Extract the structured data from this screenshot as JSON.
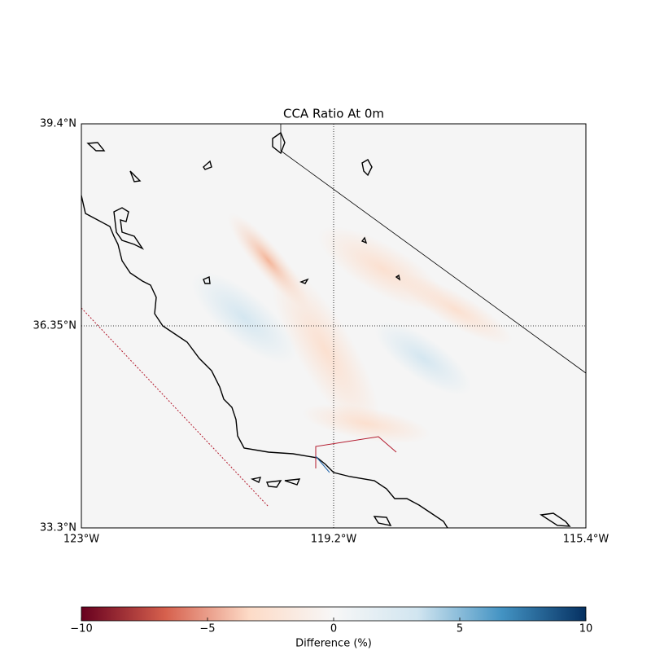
{
  "chart_data": {
    "type": "map",
    "title": "CCA Ratio At 0m",
    "xlim": [
      -123,
      -115.4
    ],
    "xticks": [
      {
        "value": -123,
        "label": "123°W"
      },
      {
        "value": -119.2,
        "label": "119.2°W"
      },
      {
        "value": -115.4,
        "label": "115.4°W"
      }
    ],
    "ylim": [
      33.3,
      39.4
    ],
    "yticks": [
      {
        "value": 33.3,
        "label": "33.3°N"
      },
      {
        "value": 36.35,
        "label": "36.35°N"
      },
      {
        "value": 39.4,
        "label": "39.4°N"
      }
    ],
    "grid": true,
    "colorbar": {
      "label": "Difference (%)",
      "lim": [
        -10,
        10
      ],
      "ticks": [
        {
          "value": -10,
          "label": "−10"
        },
        {
          "value": -5,
          "label": "−5"
        },
        0,
        5,
        10
      ],
      "colors": [
        "#67001f",
        "#d6604d",
        "#fddbc7",
        "#f7f7f7",
        "#d1e5f0",
        "#4393c3",
        "#053061"
      ]
    }
  }
}
